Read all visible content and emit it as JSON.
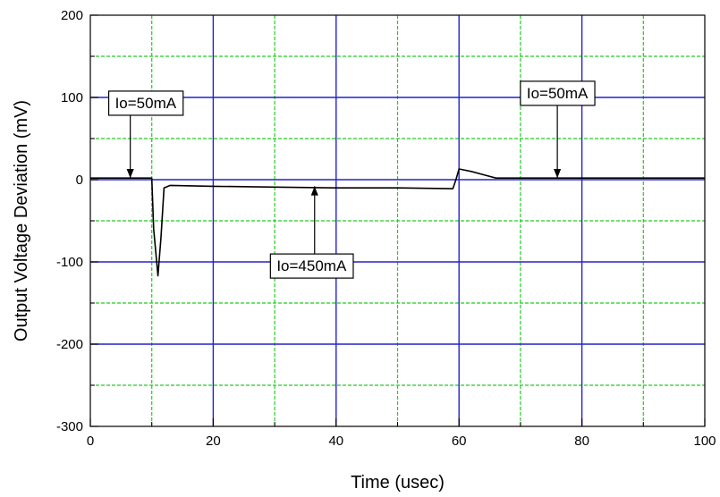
{
  "chart_data": {
    "type": "line",
    "title": "",
    "xlabel": "Time (usec)",
    "ylabel": "Output Voltage Deviation (mV)",
    "xlim": [
      0,
      100
    ],
    "ylim": [
      -300,
      200
    ],
    "x_ticks": [
      0,
      20,
      40,
      60,
      80,
      100
    ],
    "x_tick_labels": [
      "0",
      "20",
      "40",
      "60",
      "80",
      "100"
    ],
    "y_ticks": [
      -300,
      -200,
      -100,
      0,
      100,
      200
    ],
    "y_tick_labels": [
      "-300",
      "-200",
      "-100",
      "0",
      "100",
      "200"
    ],
    "grid": true,
    "grid_major_color": "#2222cc",
    "grid_minor_color": "#22cc22",
    "legend": "none",
    "series": [
      {
        "color": "#000000",
        "x": [
          0,
          10,
          10.3,
          11,
          11.5,
          12,
          13,
          20,
          30,
          40,
          50,
          59,
          59.5,
          60,
          62,
          64,
          66,
          70,
          80,
          90,
          100
        ],
        "y": [
          2,
          2,
          -60,
          -117,
          -70,
          -10,
          -7,
          -8,
          -9,
          -10,
          -10,
          -11,
          0,
          13,
          10,
          6,
          2,
          2,
          2,
          2,
          2
        ]
      }
    ],
    "annotations": [
      {
        "text": "Io=50mA",
        "box_x": 9,
        "box_y": 93,
        "point_x": 6.5,
        "point_y": 2
      },
      {
        "text": "Io=450mA",
        "box_x": 36,
        "box_y": -105,
        "point_x": 36.5,
        "point_y": -8
      },
      {
        "text": "Io=50mA",
        "box_x": 76,
        "box_y": 105,
        "point_x": 76,
        "point_y": 2
      }
    ]
  }
}
